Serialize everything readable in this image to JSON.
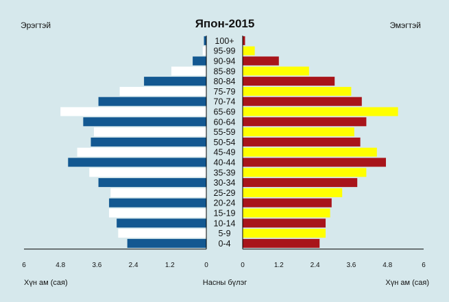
{
  "chart_data": {
    "type": "bar",
    "title": "Япон-2015",
    "left_label": "Эрэгтэй",
    "right_label": "Эмэгтэй",
    "center_axis_label": "Насны бүлэг",
    "left_axis_label": "Хүн ам (сая)",
    "right_axis_label": "Хүн ам (сая)",
    "age_groups": [
      "100+",
      "95-99",
      "90-94",
      "85-89",
      "80-84",
      "75-79",
      "70-74",
      "65-69",
      "60-64",
      "55-59",
      "50-54",
      "45-49",
      "40-44",
      "35-39",
      "30-34",
      "25-29",
      "20-24",
      "15-19",
      "10-14",
      "5-9",
      "0-4"
    ],
    "series": [
      {
        "name": "Эрэгтэй",
        "values": [
          0.08,
          0.12,
          0.45,
          1.15,
          2.05,
          2.85,
          3.55,
          4.8,
          4.05,
          3.7,
          3.8,
          4.25,
          4.55,
          3.85,
          3.55,
          3.15,
          3.2,
          3.2,
          2.95,
          2.9,
          2.6
        ]
      },
      {
        "name": "Эмэгтэй",
        "values": [
          0.08,
          0.4,
          1.2,
          2.2,
          3.05,
          3.6,
          3.95,
          5.15,
          4.1,
          3.7,
          3.9,
          4.45,
          4.75,
          4.1,
          3.8,
          3.3,
          2.95,
          2.9,
          2.75,
          2.75,
          2.55
        ]
      }
    ],
    "left_ticks": [
      "6",
      "4.8",
      "3.6",
      "2.4",
      "1.2",
      "0"
    ],
    "right_ticks": [
      "0",
      "1.2",
      "2.4",
      "3.6",
      "4.8",
      "6"
    ],
    "xlim": [
      0,
      6
    ],
    "colors": {
      "male_dark": "#135891",
      "male_light": "#ffffff",
      "female_dark": "#a8141a",
      "female_light": "#ffff00",
      "background": "#d6e8ec"
    }
  }
}
